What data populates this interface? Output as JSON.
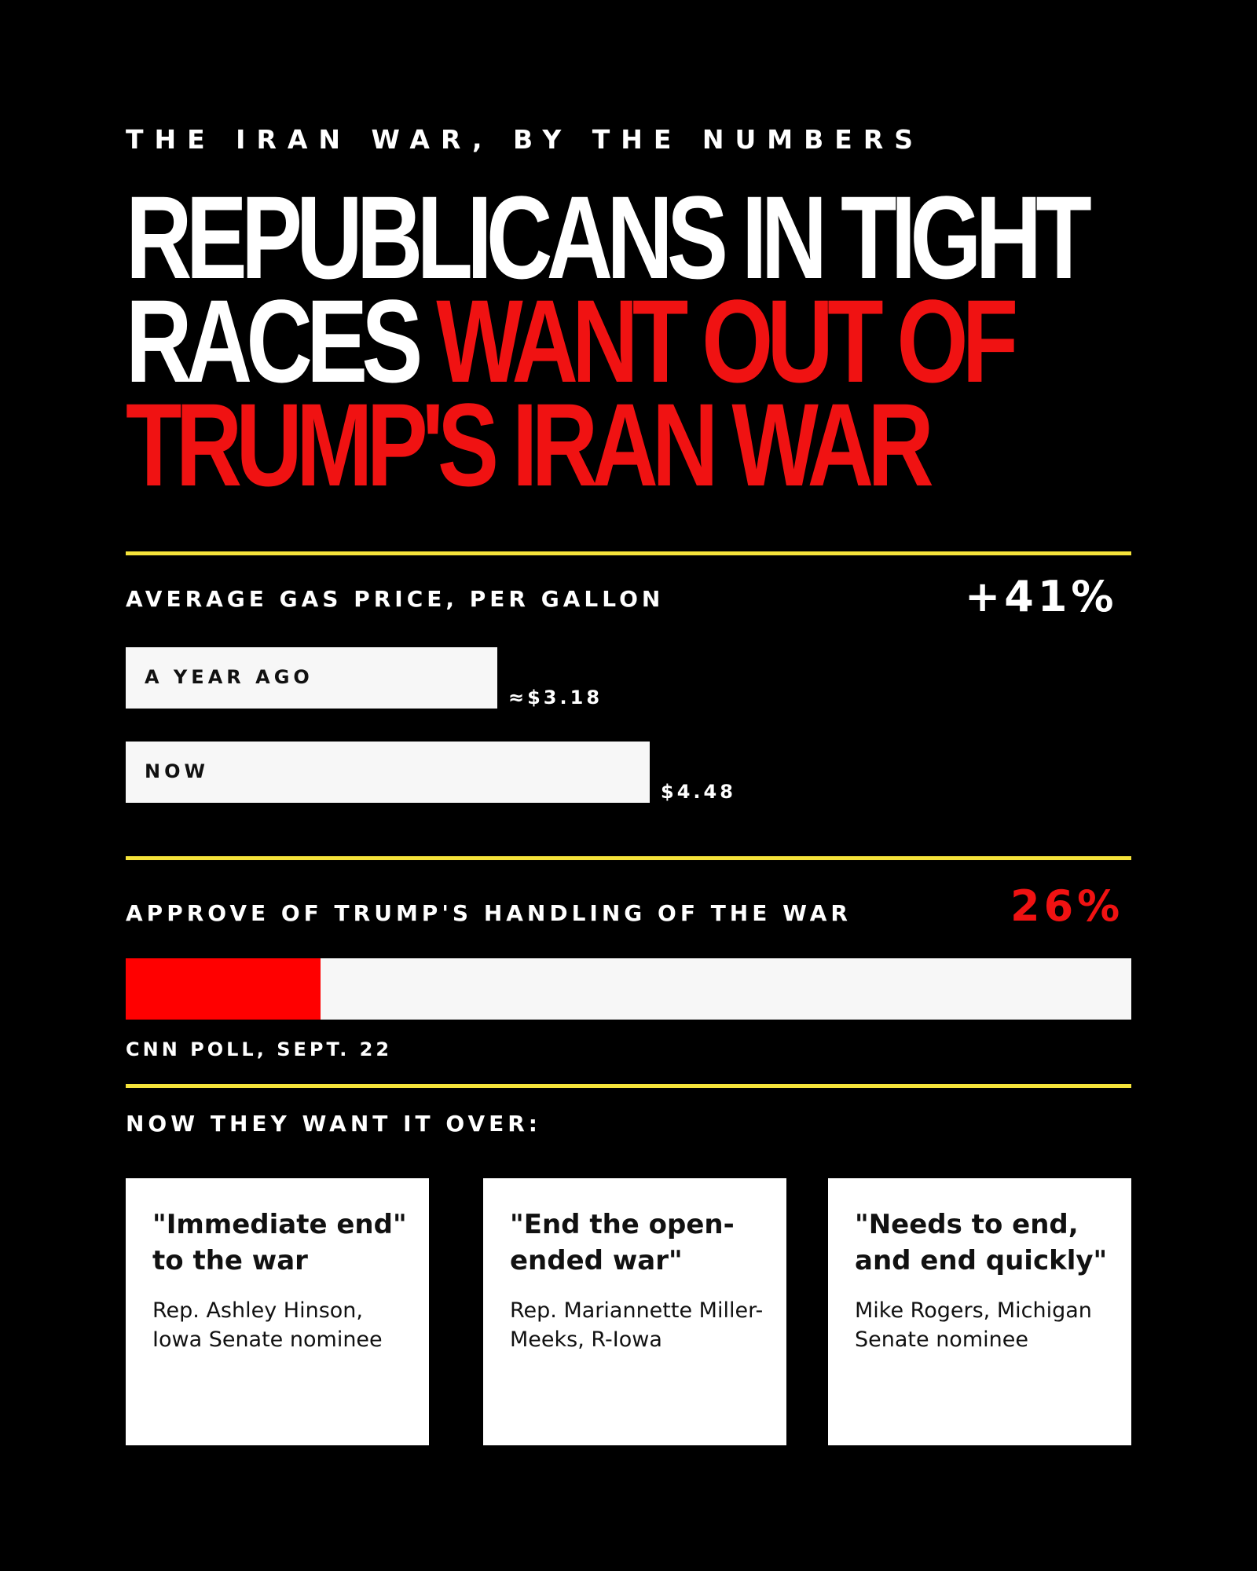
{
  "kicker": "THE IRAN WAR, BY THE NUMBERS",
  "headline": {
    "white_part": "REPUBLICANS IN TIGHT RACES",
    "red_part": "WANT OUT OF TRUMP'S IRAN WAR"
  },
  "colors": {
    "background": "#000000",
    "accent_red": "#f01212",
    "rule_yellow": "#f5e33a",
    "bar_fill": "#f7f7f7",
    "approve_fill": "#ff0000"
  },
  "gas": {
    "label": "AVERAGE GAS PRICE, PER GALLON",
    "change": "+41%"
  },
  "approval": {
    "label": "APPROVE OF TRUMP'S HANDLING OF THE WAR",
    "value_label": "26%",
    "source": "CNN POLL, SEPT. 22"
  },
  "chart_data": [
    {
      "type": "bar",
      "title": "AVERAGE GAS PRICE, PER GALLON",
      "categories": [
        "A YEAR AGO",
        "NOW"
      ],
      "values": [
        3.18,
        4.48
      ],
      "value_labels": [
        "≈$3.18",
        "$4.48"
      ],
      "annotation": "+41%",
      "xlim": [
        0,
        8.6
      ]
    },
    {
      "type": "bar",
      "title": "APPROVE OF TRUMP'S HANDLING OF THE WAR",
      "categories": [
        "Approve"
      ],
      "values": [
        26
      ],
      "value_labels": [
        "26%"
      ],
      "xlim": [
        0,
        134
      ]
    }
  ],
  "quotes_section": {
    "label": "NOW THEY WANT IT OVER:",
    "cards": [
      {
        "quote": "\"Immediate end\" to the war",
        "attribution": "Rep. Ashley Hinson, Iowa Senate nominee"
      },
      {
        "quote": "\"End the open-ended war\"",
        "attribution": "Rep. Mariannette Miller-Meeks, R-Iowa"
      },
      {
        "quote": "\"Needs to end, and end quickly\"",
        "attribution": "Mike Rogers, Michigan Senate nominee"
      }
    ]
  }
}
